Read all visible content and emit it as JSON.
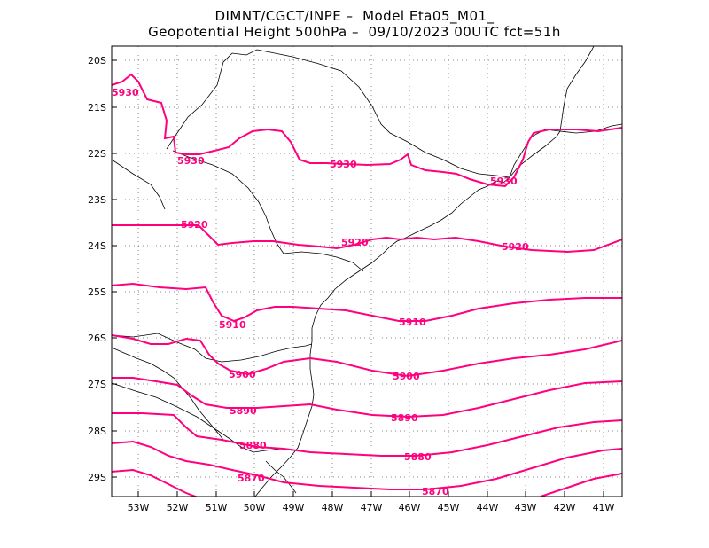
{
  "header": {
    "line1": "DIMNT/CGCT/INPE –  Model Eta05_M01_",
    "line2": "Geopotential Height 500hPa –  09/10/2023 00UTC fct=51h"
  },
  "map": {
    "lat_labels": [
      "20S",
      "21S",
      "22S",
      "23S",
      "24S",
      "25S",
      "26S",
      "27S",
      "28S",
      "29S"
    ],
    "lon_labels": [
      "53W",
      "52W",
      "51W",
      "50W",
      "49W",
      "48W",
      "47W",
      "46W",
      "45W",
      "44W",
      "43W",
      "42W",
      "41W"
    ],
    "contour_color": "#ff007f",
    "contour_labels": [
      {
        "text": "5930"
      },
      {
        "text": "5930"
      },
      {
        "text": "5930"
      },
      {
        "text": "5930"
      },
      {
        "text": "5920"
      },
      {
        "text": "5920"
      },
      {
        "text": "5920"
      },
      {
        "text": "5910"
      },
      {
        "text": "5910"
      },
      {
        "text": "5900"
      },
      {
        "text": "5900"
      },
      {
        "text": "5890"
      },
      {
        "text": "5890"
      },
      {
        "text": "5880"
      },
      {
        "text": "5880"
      },
      {
        "text": "5870"
      },
      {
        "text": "5870"
      }
    ]
  }
}
